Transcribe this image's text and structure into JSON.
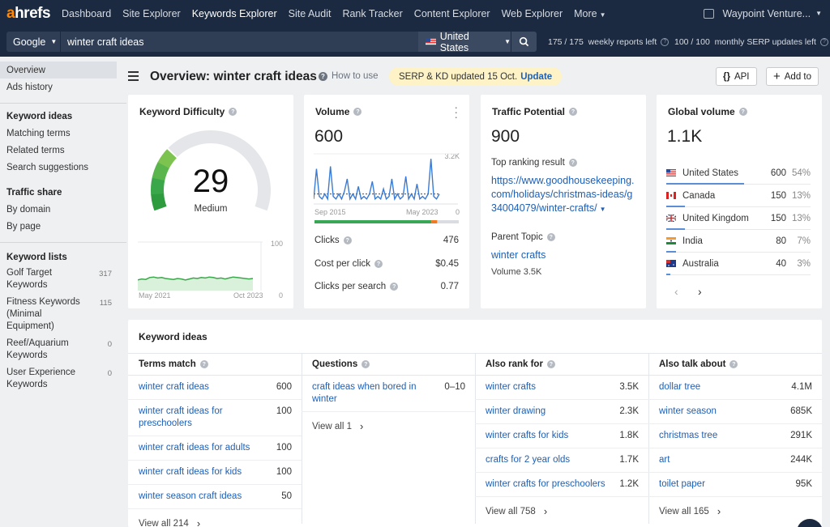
{
  "nav": {
    "logo_a": "a",
    "logo_rest": "hrefs",
    "items": [
      "Dashboard",
      "Site Explorer",
      "Keywords Explorer",
      "Site Audit",
      "Rank Tracker",
      "Content Explorer",
      "Web Explorer",
      "More"
    ],
    "active_index": 2,
    "account": "Waypoint Venture..."
  },
  "search": {
    "engine": "Google",
    "query": "winter craft ideas",
    "country": "United States",
    "weekly_quota": "175 / 175",
    "weekly_label": "weekly reports left",
    "serp_quota": "100 / 100",
    "serp_label": "monthly SERP updates left"
  },
  "sidebar": {
    "top": [
      "Overview",
      "Ads history"
    ],
    "keyword_ideas_head": "Keyword ideas",
    "keyword_ideas": [
      "Matching terms",
      "Related terms",
      "Search suggestions"
    ],
    "traffic_share_head": "Traffic share",
    "traffic_share": [
      "By domain",
      "By page"
    ],
    "keyword_lists_head": "Keyword lists",
    "keyword_lists": [
      {
        "name": "Golf Target Keywords",
        "count": "317"
      },
      {
        "name": "Fitness Keywords (Minimal Equipment)",
        "count": "115"
      },
      {
        "name": "Reef/Aquarium Keywords",
        "count": "0"
      },
      {
        "name": "User Experience Keywords",
        "count": "0"
      }
    ]
  },
  "header": {
    "title": "Overview: winter craft ideas",
    "how_to": "How to use",
    "serp_text": "SERP & KD updated 15 Oct.",
    "serp_link": "Update",
    "api_label": "API",
    "add_label": "Add to"
  },
  "kd": {
    "title": "Keyword Difficulty",
    "value": "29",
    "level": "Medium",
    "trend_max": "100",
    "trend_min": "0",
    "trend_start": "May 2021",
    "trend_end": "Oct 2023",
    "trend": [
      22,
      24,
      23,
      27,
      28,
      26,
      27,
      25,
      24,
      23,
      25,
      24,
      22,
      24,
      26,
      25,
      27,
      26,
      28,
      27,
      25,
      26,
      24,
      26,
      28,
      27,
      26,
      25,
      24,
      25
    ]
  },
  "volume": {
    "title": "Volume",
    "value": "600",
    "chart_max": "3.2K",
    "chart_min": "0",
    "chart_start": "Sep 2015",
    "chart_end": "May 2023",
    "series": [
      0.1,
      0.7,
      0.15,
      0.1,
      0.2,
      0.1,
      0.75,
      0.15,
      0.1,
      0.2,
      0.1,
      0.25,
      0.5,
      0.1,
      0.2,
      0.1,
      0.35,
      0.1,
      0.15,
      0.1,
      0.2,
      0.45,
      0.1,
      0.15,
      0.1,
      0.3,
      0.1,
      0.15,
      0.5,
      0.1,
      0.2,
      0.1,
      0.15,
      0.55,
      0.1,
      0.2,
      0.1,
      0.4,
      0.1,
      0.15,
      0.1,
      0.2,
      0.9,
      0.15,
      0.1,
      0.2
    ],
    "clicks_label": "Clicks",
    "clicks": "476",
    "cpc_label": "Cost per click",
    "cpc": "$0.45",
    "cps_label": "Clicks per search",
    "cps": "0.77",
    "split": {
      "organic": 0.81,
      "paid": 0.04
    },
    "colors": {
      "organic": "#3aa757",
      "paid": "#f07a24",
      "rest": "#d9dce1"
    }
  },
  "traffic": {
    "title": "Traffic Potential",
    "value": "900",
    "top_result_label": "Top ranking result",
    "top_result_url": "https://www.goodhousekeeping.com/holidays/christmas-ideas/g34004079/winter-crafts/",
    "parent_label": "Parent Topic",
    "parent_topic": "winter crafts",
    "parent_volume": "Volume 3.5K"
  },
  "global": {
    "title": "Global volume",
    "value": "1.1K",
    "countries": [
      {
        "name": "United States",
        "vol": "600",
        "pct": "54%",
        "flag": "us",
        "share": 0.54
      },
      {
        "name": "Canada",
        "vol": "150",
        "pct": "13%",
        "flag": "ca",
        "share": 0.13
      },
      {
        "name": "United Kingdom",
        "vol": "150",
        "pct": "13%",
        "flag": "gb",
        "share": 0.13
      },
      {
        "name": "India",
        "vol": "80",
        "pct": "7%",
        "flag": "in",
        "share": 0.07
      },
      {
        "name": "Australia",
        "vol": "40",
        "pct": "3%",
        "flag": "au",
        "share": 0.03
      }
    ]
  },
  "ideas": {
    "title": "Keyword ideas",
    "columns": [
      {
        "head": "Terms match",
        "rows": [
          {
            "kw": "winter craft ideas",
            "vol": "600"
          },
          {
            "kw": "winter craft ideas for preschoolers",
            "vol": "100"
          },
          {
            "kw": "winter craft ideas for adults",
            "vol": "100"
          },
          {
            "kw": "winter craft ideas for kids",
            "vol": "100"
          },
          {
            "kw": "winter season craft ideas",
            "vol": "50"
          }
        ],
        "view_all": "View all 214"
      },
      {
        "head": "Questions",
        "rows": [
          {
            "kw": "craft ideas when bored in winter",
            "vol": "0–10"
          }
        ],
        "view_all": "View all 1"
      },
      {
        "head": "Also rank for",
        "rows": [
          {
            "kw": "winter crafts",
            "vol": "3.5K"
          },
          {
            "kw": "winter drawing",
            "vol": "2.3K"
          },
          {
            "kw": "winter crafts for kids",
            "vol": "1.8K"
          },
          {
            "kw": "crafts for 2 year olds",
            "vol": "1.7K"
          },
          {
            "kw": "winter crafts for preschoolers",
            "vol": "1.2K"
          }
        ],
        "view_all": "View all 758"
      },
      {
        "head": "Also talk about",
        "rows": [
          {
            "kw": "dollar tree",
            "vol": "4.1M"
          },
          {
            "kw": "winter season",
            "vol": "685K"
          },
          {
            "kw": "christmas tree",
            "vol": "291K"
          },
          {
            "kw": "art",
            "vol": "244K"
          },
          {
            "kw": "toilet paper",
            "vol": "95K"
          }
        ],
        "view_all": "View all 165"
      }
    ]
  }
}
